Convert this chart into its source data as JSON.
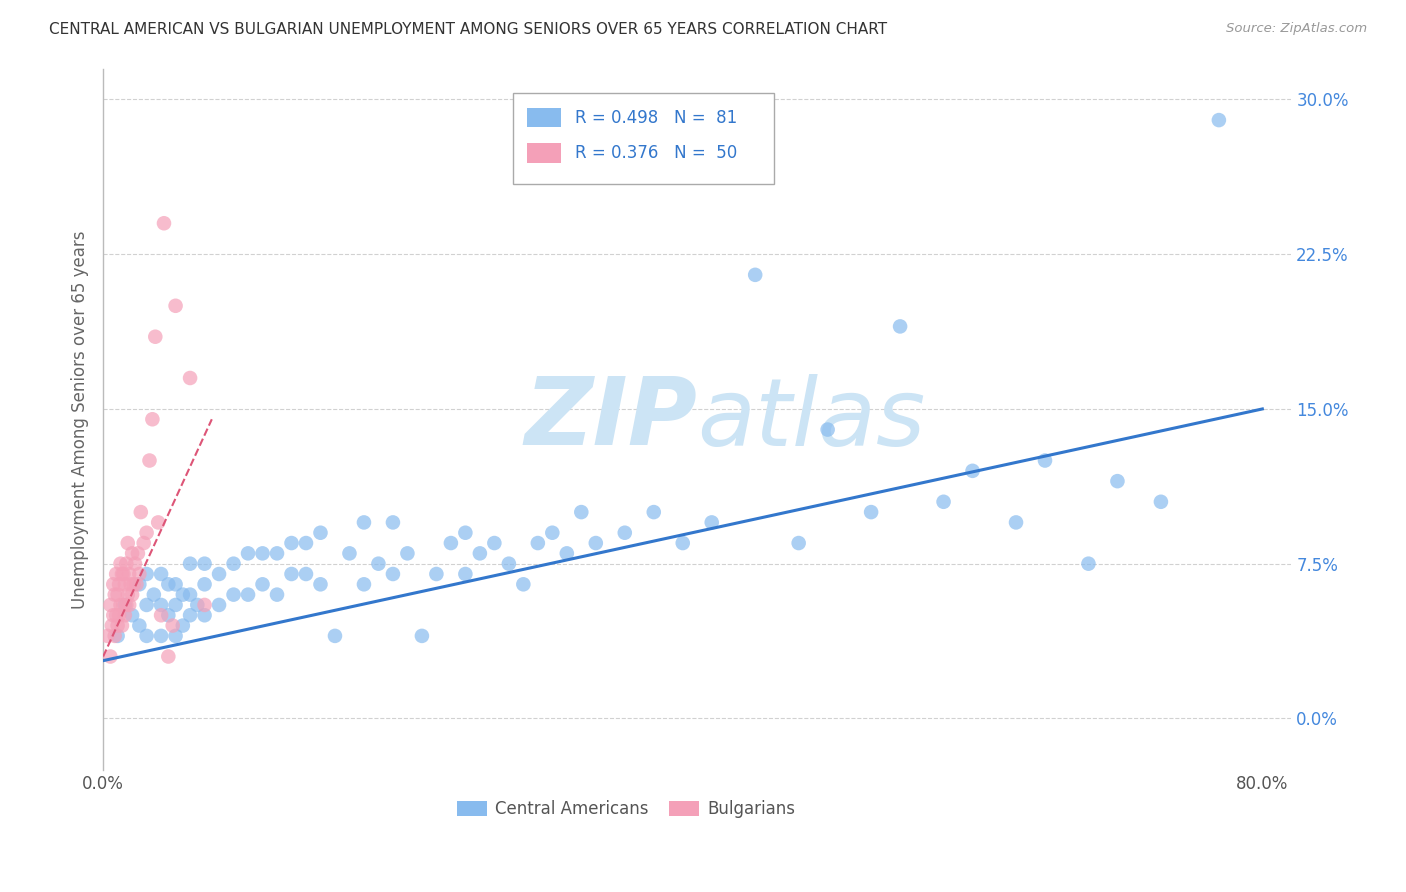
{
  "title": "CENTRAL AMERICAN VS BULGARIAN UNEMPLOYMENT AMONG SENIORS OVER 65 YEARS CORRELATION CHART",
  "source": "Source: ZipAtlas.com",
  "ylabel": "Unemployment Among Seniors over 65 years",
  "blue_color": "#88bbee",
  "pink_color": "#f4a0b8",
  "blue_line_color": "#3377cc",
  "pink_line_color": "#dd5577",
  "watermark_color": "#cce4f5",
  "xlim": [
    0.0,
    0.82
  ],
  "ylim": [
    -0.025,
    0.315
  ],
  "x_tick_positions": [
    0.0,
    0.2,
    0.4,
    0.6,
    0.8
  ],
  "x_tick_labels": [
    "0.0%",
    "",
    "",
    "",
    "80.0%"
  ],
  "y_tick_positions": [
    0.0,
    0.075,
    0.15,
    0.225,
    0.3
  ],
  "y_tick_labels": [
    "0.0%",
    "7.5%",
    "15.0%",
    "22.5%",
    "30.0%"
  ],
  "blue_scatter_x": [
    0.01,
    0.015,
    0.02,
    0.025,
    0.025,
    0.03,
    0.03,
    0.03,
    0.035,
    0.04,
    0.04,
    0.04,
    0.045,
    0.045,
    0.05,
    0.05,
    0.05,
    0.055,
    0.055,
    0.06,
    0.06,
    0.06,
    0.065,
    0.07,
    0.07,
    0.07,
    0.08,
    0.08,
    0.09,
    0.09,
    0.1,
    0.1,
    0.11,
    0.11,
    0.12,
    0.12,
    0.13,
    0.13,
    0.14,
    0.14,
    0.15,
    0.15,
    0.16,
    0.17,
    0.18,
    0.18,
    0.19,
    0.2,
    0.2,
    0.21,
    0.22,
    0.23,
    0.24,
    0.25,
    0.25,
    0.26,
    0.27,
    0.28,
    0.29,
    0.3,
    0.31,
    0.32,
    0.33,
    0.34,
    0.36,
    0.38,
    0.4,
    0.42,
    0.45,
    0.48,
    0.5,
    0.53,
    0.55,
    0.58,
    0.6,
    0.63,
    0.65,
    0.68,
    0.7,
    0.73,
    0.77
  ],
  "blue_scatter_y": [
    0.04,
    0.055,
    0.05,
    0.045,
    0.065,
    0.04,
    0.055,
    0.07,
    0.06,
    0.04,
    0.055,
    0.07,
    0.05,
    0.065,
    0.04,
    0.055,
    0.065,
    0.045,
    0.06,
    0.05,
    0.06,
    0.075,
    0.055,
    0.05,
    0.065,
    0.075,
    0.055,
    0.07,
    0.06,
    0.075,
    0.06,
    0.08,
    0.065,
    0.08,
    0.06,
    0.08,
    0.07,
    0.085,
    0.07,
    0.085,
    0.065,
    0.09,
    0.04,
    0.08,
    0.065,
    0.095,
    0.075,
    0.07,
    0.095,
    0.08,
    0.04,
    0.07,
    0.085,
    0.07,
    0.09,
    0.08,
    0.085,
    0.075,
    0.065,
    0.085,
    0.09,
    0.08,
    0.1,
    0.085,
    0.09,
    0.1,
    0.085,
    0.095,
    0.215,
    0.085,
    0.14,
    0.1,
    0.19,
    0.105,
    0.12,
    0.095,
    0.125,
    0.075,
    0.115,
    0.105,
    0.29
  ],
  "pink_scatter_x": [
    0.003,
    0.005,
    0.005,
    0.006,
    0.007,
    0.007,
    0.008,
    0.008,
    0.009,
    0.009,
    0.01,
    0.01,
    0.011,
    0.011,
    0.012,
    0.012,
    0.013,
    0.013,
    0.014,
    0.014,
    0.015,
    0.015,
    0.016,
    0.016,
    0.017,
    0.017,
    0.018,
    0.018,
    0.019,
    0.02,
    0.02,
    0.021,
    0.022,
    0.023,
    0.024,
    0.025,
    0.026,
    0.028,
    0.03,
    0.032,
    0.034,
    0.036,
    0.038,
    0.04,
    0.042,
    0.045,
    0.048,
    0.05,
    0.06,
    0.07
  ],
  "pink_scatter_y": [
    0.04,
    0.055,
    0.03,
    0.045,
    0.05,
    0.065,
    0.04,
    0.06,
    0.05,
    0.07,
    0.045,
    0.06,
    0.05,
    0.065,
    0.055,
    0.075,
    0.045,
    0.07,
    0.055,
    0.07,
    0.05,
    0.065,
    0.055,
    0.075,
    0.06,
    0.085,
    0.055,
    0.07,
    0.065,
    0.06,
    0.08,
    0.065,
    0.075,
    0.065,
    0.08,
    0.07,
    0.1,
    0.085,
    0.09,
    0.125,
    0.145,
    0.185,
    0.095,
    0.05,
    0.24,
    0.03,
    0.045,
    0.2,
    0.165,
    0.055
  ],
  "blue_line_x": [
    0.0,
    0.8
  ],
  "blue_line_y": [
    0.028,
    0.15
  ],
  "pink_line_x": [
    0.0,
    0.075
  ],
  "pink_line_y": [
    0.03,
    0.145
  ]
}
